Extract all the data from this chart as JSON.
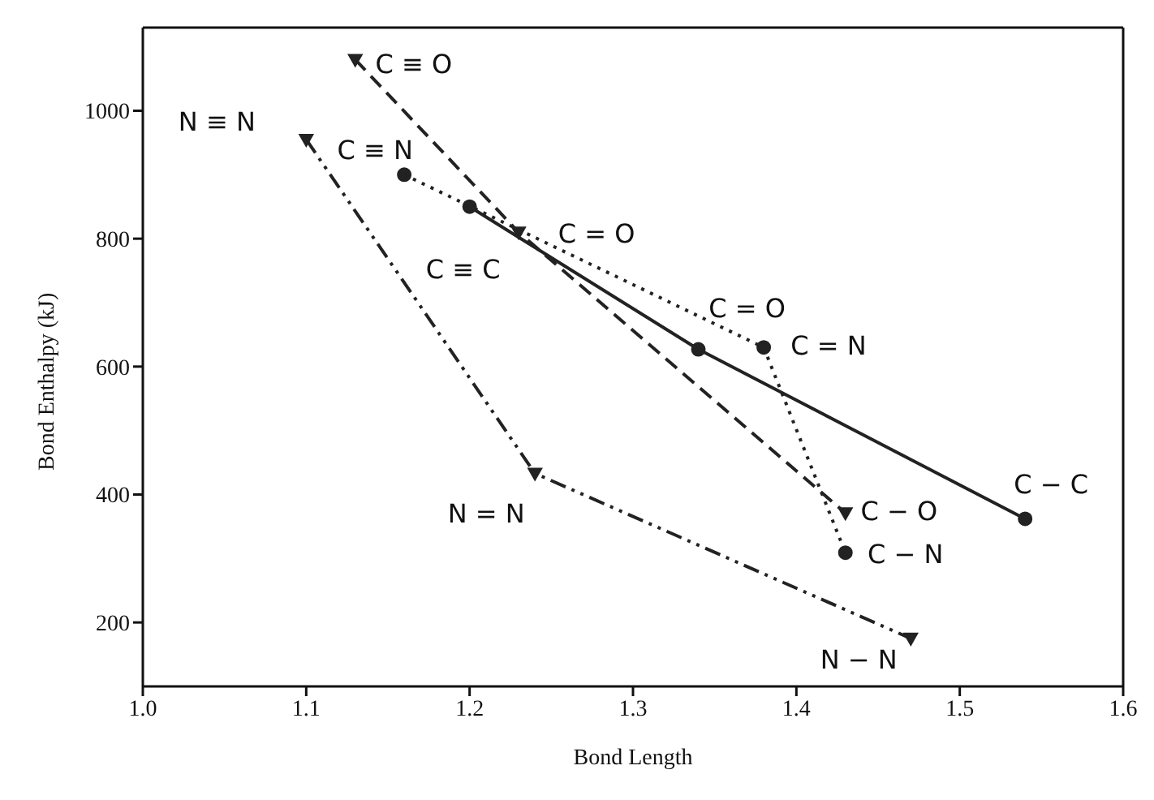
{
  "chart_data": {
    "type": "line",
    "xlabel": "Bond Length",
    "ylabel": "Bond Enthalpy (kJ)",
    "xlim": [
      1.0,
      1.6
    ],
    "xticks": [
      {
        "value": 1.0,
        "label": "1.0"
      },
      1.1,
      1.2,
      1.3,
      1.4,
      1.5,
      1.6
    ],
    "ylim": [
      100,
      1130
    ],
    "yticks": [
      200,
      400,
      600,
      800,
      1000
    ],
    "series": [
      {
        "color": "#222222",
        "line_style": "solid",
        "marker": "circle",
        "x": [
          1.2,
          1.34,
          1.54
        ],
        "values": [
          850,
          627,
          362
        ]
      },
      {
        "color": "#222222",
        "line_style": "dashed",
        "marker": "triangle",
        "x": [
          1.13,
          1.23,
          1.43
        ],
        "values": [
          1080,
          810,
          371
        ]
      },
      {
        "color": "#222222",
        "line_style": "dotted",
        "marker": "circle",
        "x": [
          1.16,
          1.38,
          1.43
        ],
        "values": [
          900,
          630,
          309
        ]
      },
      {
        "color": "#222222",
        "line_style": "dashdot",
        "marker": "triangle",
        "x": [
          1.1,
          1.24,
          1.47
        ],
        "values": [
          955,
          433,
          175
        ]
      }
    ],
    "annotations": [
      {
        "text": "C ≡ O",
        "x": 1.13,
        "y": 1080
      },
      {
        "text": "N ≡ N",
        "x": 1.1,
        "y": 955
      },
      {
        "text": "C ≡ N",
        "x": 1.16,
        "y": 900
      },
      {
        "text": "C = O",
        "x": 1.23,
        "y": 810
      },
      {
        "text": "C ≡ C",
        "x": 1.2,
        "y": 850
      },
      {
        "text": "C = O",
        "x": 1.34,
        "y": 627
      },
      {
        "text": "C = N",
        "x": 1.38,
        "y": 630
      },
      {
        "text": "C − O",
        "x": 1.43,
        "y": 371
      },
      {
        "text": "C − C",
        "x": 1.54,
        "y": 362
      },
      {
        "text": "C − N",
        "x": 1.43,
        "y": 309
      },
      {
        "text": "N = N",
        "x": 1.24,
        "y": 433
      },
      {
        "text": "N − N",
        "x": 1.47,
        "y": 175
      }
    ]
  }
}
